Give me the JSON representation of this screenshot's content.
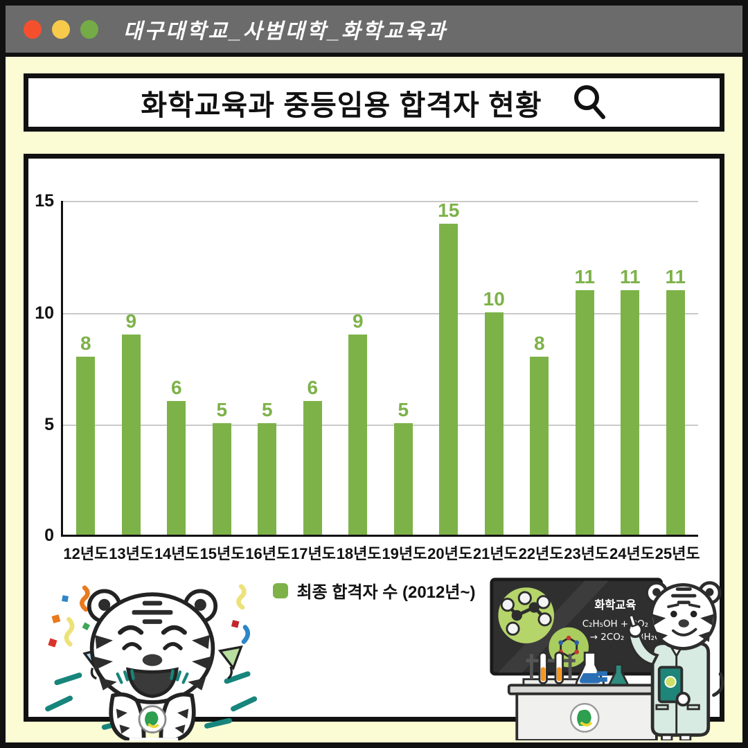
{
  "window": {
    "titlebar_text": "대구대학교_사범대학_화학교육과",
    "controls": [
      {
        "name": "close",
        "color": "#F4502E"
      },
      {
        "name": "minimize",
        "color": "#F8CA4B"
      },
      {
        "name": "maximize",
        "color": "#74AB47"
      }
    ]
  },
  "search_bar": {
    "title": "화학교육과 중등임용 합격자 현황",
    "icon": "magnifier-icon"
  },
  "chart_data": {
    "type": "bar",
    "title": "화학교육과 중등임용 합격자 현황",
    "categories": [
      "12년도",
      "13년도",
      "14년도",
      "15년도",
      "16년도",
      "17년도",
      "18년도",
      "19년도",
      "20년도",
      "21년도",
      "22년도",
      "23년도",
      "24년도",
      "25년도"
    ],
    "values": [
      8,
      9,
      6,
      5,
      5,
      6,
      9,
      5,
      15,
      10,
      8,
      11,
      11,
      11
    ],
    "ylim": [
      0,
      15
    ],
    "yticks": [
      0,
      5,
      10,
      15
    ],
    "grid": true,
    "bar_color": "#7DB249",
    "value_label_color": "#7DB249",
    "legend": {
      "label": "최종 합격자 수 (2012년~)",
      "position": "bottom",
      "swatch_color": "#7DB249"
    },
    "xlabel": "",
    "ylabel": ""
  },
  "illustrations": {
    "left_mascot": "celebrating-white-tiger-with-confetti",
    "right_mascot": "tiger-teacher-at-chalkboard-with-lab-desk",
    "chalkboard": {
      "title": "화학교육",
      "equation_line1": "C₂H₅OH + 3O₂",
      "equation_line2": "→ 2CO₂ + 3H₂O"
    }
  },
  "colors": {
    "background": "#FBFBD4",
    "titlebar": "#6B6B6B",
    "border": "#111111",
    "bar_green": "#7DB249",
    "gridline": "#C9C9C9",
    "teal_accent": "#17857B",
    "chalkboard": "#2F2F2F",
    "lab_coat": "#D8EBE3"
  }
}
